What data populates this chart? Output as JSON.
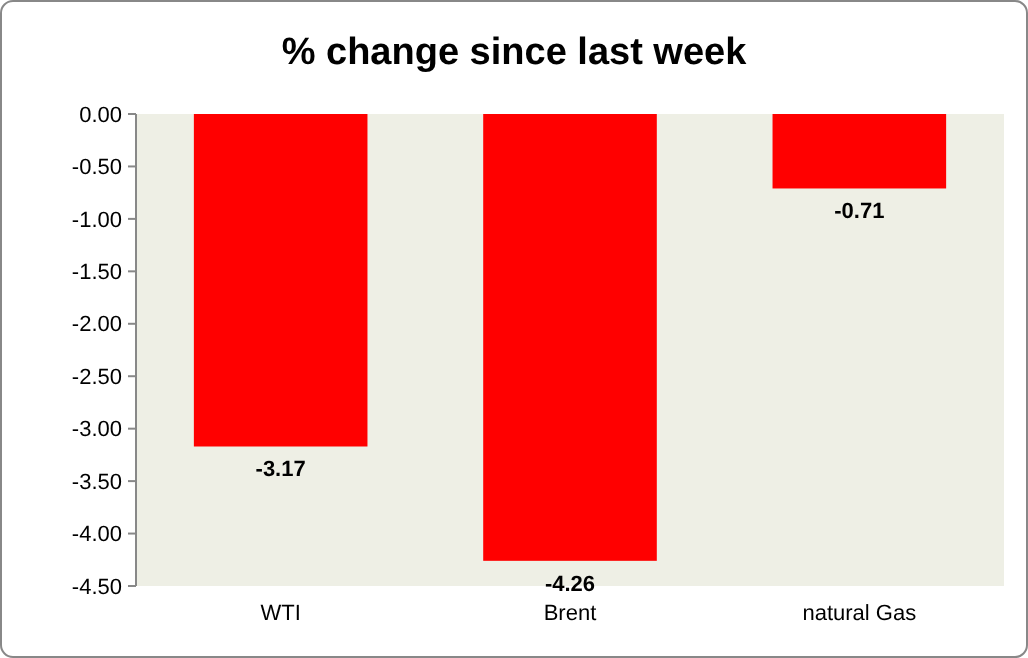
{
  "chart_data": {
    "type": "bar",
    "title": "% change since last week",
    "categories": [
      "WTI",
      "Brent",
      "natural Gas"
    ],
    "values": [
      -3.17,
      -4.26,
      -0.71
    ],
    "color": "#ff0000",
    "ylim": [
      -4.5,
      0
    ],
    "yticks": [
      {
        "value": 0,
        "label": "0.00"
      },
      {
        "value": -0.5,
        "label": "-0.50"
      },
      {
        "value": -1,
        "label": "-1.00"
      },
      {
        "value": -1.5,
        "label": "-1.50"
      },
      {
        "value": -2,
        "label": "-2.00"
      },
      {
        "value": -2.5,
        "label": "-2.50"
      },
      {
        "value": -3,
        "label": "-3.00"
      },
      {
        "value": -3.5,
        "label": "-3.50"
      },
      {
        "value": -4,
        "label": "-4.00"
      },
      {
        "value": -4.5,
        "label": "-4.50"
      }
    ],
    "data_labels": true
  }
}
